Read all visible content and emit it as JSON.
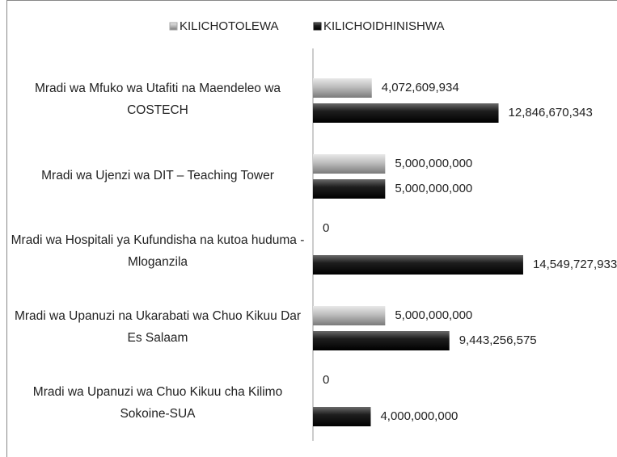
{
  "chart_data": {
    "type": "hbar",
    "categories": [
      "Mradi wa Mfuko wa Utafiti na Maendeleo wa COSTECH",
      "Mradi wa Ujenzi wa DIT – Teaching Tower",
      "Mradi wa Hospitali ya Kufundisha na kutoa huduma - Mloganzila",
      "Mradi wa Upanuzi na Ukarabati wa Chuo Kikuu Dar Es Salaam",
      "Mradi wa Upanuzi wa Chuo Kikuu cha Kilimo Sokoine-SUA"
    ],
    "series": [
      {
        "name": "KILICHOTOLEWA",
        "color": "#a6a6a6",
        "values": [
          4072609934,
          5000000000,
          0,
          5000000000,
          0
        ],
        "value_labels": [
          "4,072,609,934",
          "5,000,000,000",
          "0",
          "5,000,000,000",
          "0"
        ]
      },
      {
        "name": "KILICHOIDHINISHWA",
        "color": "#1a1a1a",
        "values": [
          12846670343,
          5000000000,
          14549727933,
          9443256575,
          4000000000
        ],
        "value_labels": [
          "12,846,670,343",
          "5,000,000,000",
          "14,549,727,933",
          "9,443,256,575",
          "4,000,000,000"
        ]
      }
    ],
    "xlim": [
      0,
      15000000000
    ],
    "legend": "top"
  }
}
